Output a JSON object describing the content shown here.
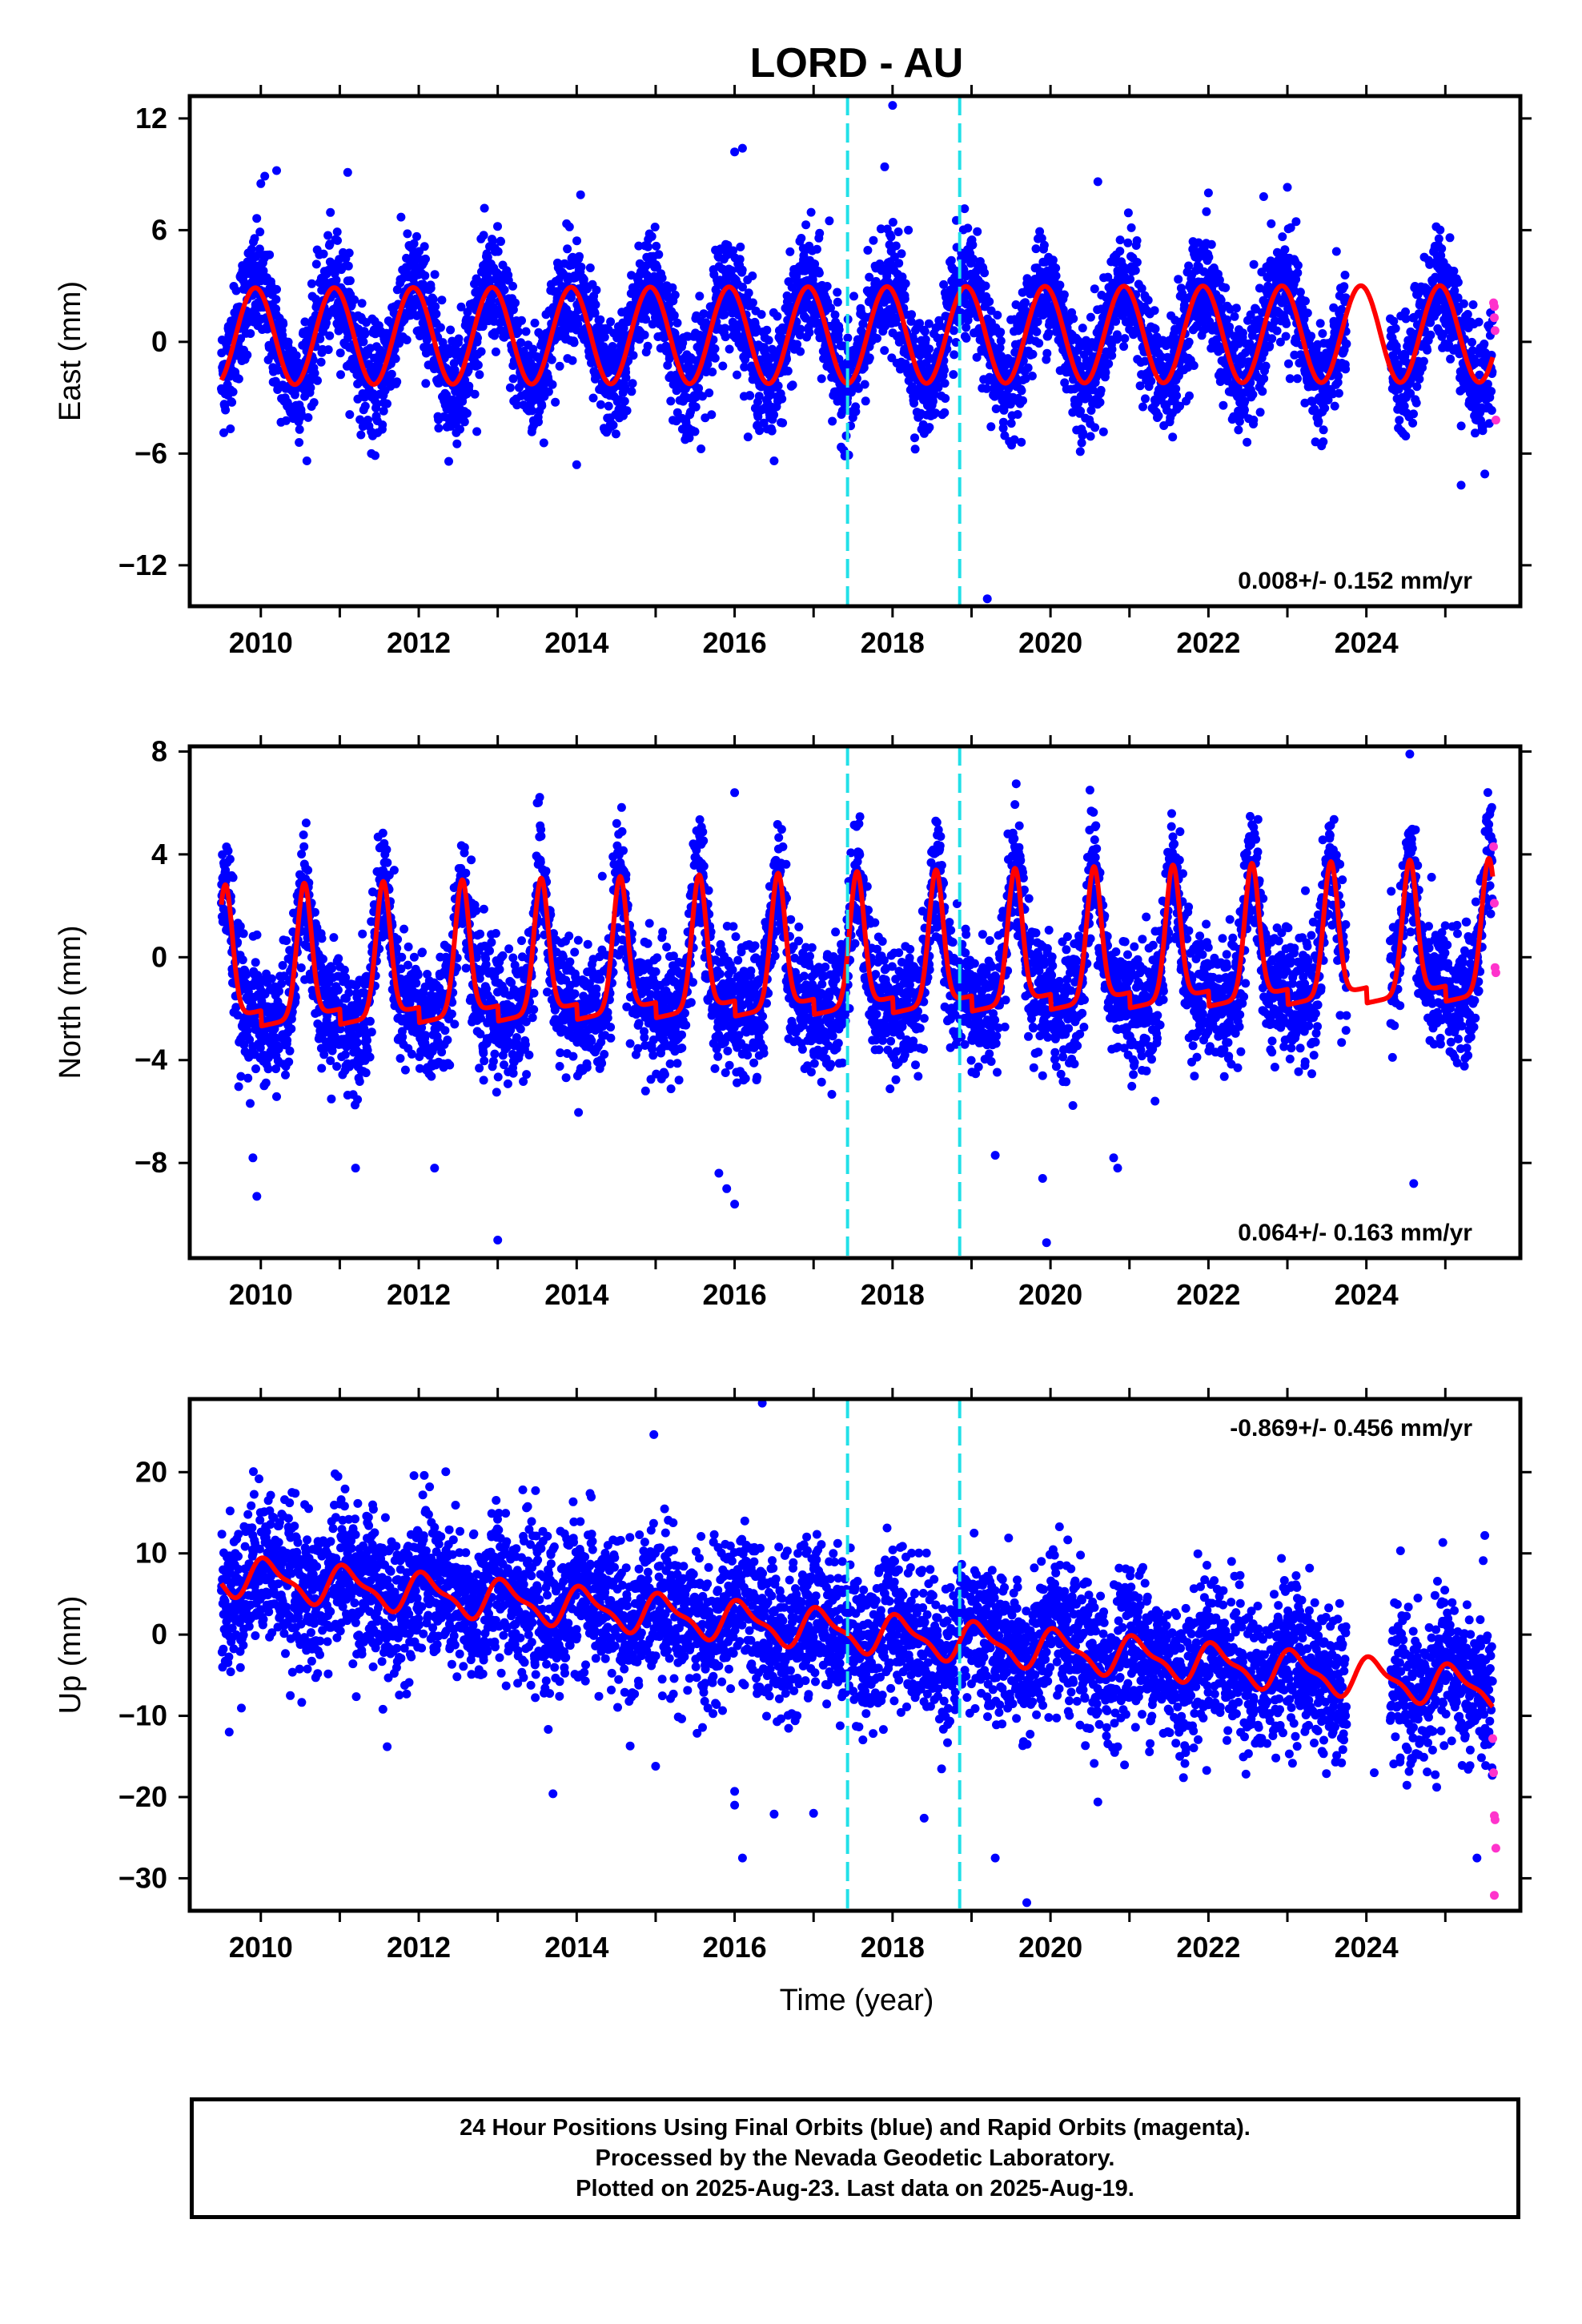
{
  "title": "LORD - AU",
  "colors": {
    "final_orbits": "#0000ff",
    "rapid_orbits": "#ff33cc",
    "model": "#ff0000",
    "event_lines": "#22e0e8"
  },
  "xaxis": {
    "label": "Time (year)",
    "range": [
      2009.1,
      2025.95
    ],
    "ticks": [
      "2010",
      "2012",
      "2014",
      "2016",
      "2018",
      "2020",
      "2022",
      "2024"
    ]
  },
  "event_lines": [
    2017.43,
    2018.85
  ],
  "panels": [
    {
      "id": "east",
      "ylabel": "East (mm)",
      "ylim": [
        -14.2,
        13.2
      ],
      "yticks": [
        "12",
        "6",
        "0",
        "-6",
        "-12"
      ],
      "rate": "0.008+/- 0.152 mm/yr",
      "rate_position": "bottom-right"
    },
    {
      "id": "north",
      "ylabel": "North (mm)",
      "ylim": [
        -11.7,
        8.2
      ],
      "yticks": [
        "8",
        "4",
        "0",
        "-4",
        "-8"
      ],
      "rate": "0.064+/- 0.163 mm/yr",
      "rate_position": "bottom-right"
    },
    {
      "id": "up",
      "ylabel": "Up (mm)",
      "ylim": [
        -34,
        29
      ],
      "yticks": [
        "20",
        "10",
        "0",
        "-10",
        "-20",
        "-30"
      ],
      "rate": "-0.869+/- 0.456 mm/yr",
      "rate_position": "top-right"
    }
  ],
  "chart_data": [
    {
      "type": "scatter",
      "title": "LORD - AU",
      "xlabel": "",
      "ylabel": "East (mm)",
      "xlim": [
        2009.1,
        2025.95
      ],
      "ylim": [
        -14.2,
        13.2
      ],
      "series": [
        {
          "name": "Final Orbits",
          "color": "#0000ff",
          "scatter_sd": 1.5,
          "data_start": 2009.5,
          "data_end": 2025.6,
          "gap": [
            2023.75,
            2024.3
          ]
        },
        {
          "name": "Rapid Orbits",
          "color": "#ff33cc",
          "x": [
            2025.61,
            2025.62,
            2025.63,
            2025.64,
            2025.62
          ],
          "y": [
            2.1,
            1.3,
            0.6,
            -4.2,
            1.9
          ]
        }
      ],
      "model": {
        "name": "Model",
        "color": "#ff0000",
        "offset": 0.3,
        "trend": 0.008,
        "annual_amp": 2.6,
        "annual_phase": 2009.68,
        "semiannual_amp": 0.0
      },
      "outliers": [
        [
          2010.0,
          8.5
        ],
        [
          2010.05,
          8.9
        ],
        [
          2010.2,
          9.2
        ],
        [
          2011.1,
          9.1
        ],
        [
          2014.05,
          7.9
        ],
        [
          2016.0,
          10.2
        ],
        [
          2016.1,
          10.4
        ],
        [
          2018.0,
          12.7
        ],
        [
          2017.9,
          9.4
        ],
        [
          2020.6,
          8.6
        ],
        [
          2022.0,
          8.0
        ],
        [
          2022.7,
          7.8
        ],
        [
          2023.0,
          8.3
        ],
        [
          2014.0,
          -6.6
        ],
        [
          2011.4,
          -6.0
        ],
        [
          2019.2,
          -13.8
        ],
        [
          2025.2,
          -7.7
        ],
        [
          2025.5,
          -7.1
        ],
        [
          2017.2,
          6.5
        ],
        [
          2018.2,
          6.0
        ]
      ],
      "annotation": "0.008+/- 0.152 mm/yr"
    },
    {
      "type": "scatter",
      "xlabel": "",
      "ylabel": "North (mm)",
      "xlim": [
        2009.1,
        2025.95
      ],
      "ylim": [
        -11.7,
        8.2
      ],
      "series": [
        {
          "name": "Final Orbits",
          "color": "#0000ff",
          "scatter_sd": 1.2,
          "data_start": 2009.5,
          "data_end": 2025.6,
          "gap": [
            2023.75,
            2024.3
          ]
        },
        {
          "name": "Rapid Orbits",
          "color": "#ff33cc",
          "x": [
            2025.61,
            2025.62,
            2025.63,
            2025.64
          ],
          "y": [
            4.3,
            2.1,
            -0.4,
            -0.6
          ]
        }
      ],
      "model": {
        "name": "Model",
        "color": "#ff0000",
        "peak_amp": 5.2,
        "base": -2.2,
        "peak_phase": 0.55,
        "trend": 0.064,
        "peak_width": 0.09
      },
      "outliers": [
        [
          2009.9,
          -7.8
        ],
        [
          2009.95,
          -9.3
        ],
        [
          2011.2,
          -8.2
        ],
        [
          2012.2,
          -8.2
        ],
        [
          2013.0,
          -11.0
        ],
        [
          2015.8,
          -8.4
        ],
        [
          2015.9,
          -9.0
        ],
        [
          2016.0,
          -9.6
        ],
        [
          2019.3,
          -7.7
        ],
        [
          2019.9,
          -8.6
        ],
        [
          2019.95,
          -11.1
        ],
        [
          2020.8,
          -7.8
        ],
        [
          2020.85,
          -8.2
        ],
        [
          2024.6,
          -8.8
        ],
        [
          2024.55,
          7.9
        ],
        [
          2016.0,
          6.4
        ],
        [
          2020.5,
          6.5
        ],
        [
          2013.5,
          6.0
        ]
      ],
      "annotation": "0.064+/- 0.163 mm/yr"
    },
    {
      "type": "scatter",
      "xlabel": "Time (year)",
      "ylabel": "Up (mm)",
      "xlim": [
        2009.1,
        2025.95
      ],
      "ylim": [
        -34,
        29
      ],
      "series": [
        {
          "name": "Final Orbits",
          "color": "#0000ff",
          "scatter_sd": 4.6,
          "data_start": 2009.5,
          "data_end": 2025.6,
          "gap": [
            2023.75,
            2024.3
          ]
        },
        {
          "name": "Rapid Orbits",
          "color": "#ff33cc",
          "x": [
            2025.6,
            2025.61,
            2025.62,
            2025.63,
            2025.64,
            2025.62
          ],
          "y": [
            -12.8,
            -17.0,
            -22.3,
            -22.8,
            -26.3,
            -32.1
          ]
        }
      ],
      "model": {
        "name": "Model",
        "color": "#ff0000",
        "offset": 7.3,
        "trend": -0.869,
        "annual_amp": 2.2,
        "annual_phase": 2009.85,
        "semiannual_amp": 0.8
      },
      "outliers": [
        [
          2016.35,
          28.5
        ],
        [
          2009.6,
          -12.0
        ],
        [
          2011.6,
          -13.8
        ],
        [
          2013.7,
          -19.6
        ],
        [
          2015.0,
          -16.2
        ],
        [
          2016.0,
          -19.3
        ],
        [
          2016.1,
          -27.5
        ],
        [
          2016.0,
          -21.0
        ],
        [
          2016.5,
          -22.1
        ],
        [
          2017.0,
          -22.0
        ],
        [
          2018.4,
          -22.6
        ],
        [
          2019.3,
          -27.5
        ],
        [
          2019.7,
          -33.0
        ],
        [
          2020.6,
          -20.6
        ],
        [
          2024.1,
          -17.0
        ],
        [
          2025.4,
          -27.5
        ],
        [
          2025.5,
          12.2
        ]
      ],
      "annotation": "-0.869+/- 0.456 mm/yr"
    }
  ],
  "footer": {
    "line1": "24 Hour Positions Using Final Orbits (blue) and Rapid Orbits (magenta).",
    "line2": "Processed by the Nevada Geodetic Laboratory.",
    "line3": "Plotted on 2025-Aug-23. Last data on 2025-Aug-19."
  }
}
